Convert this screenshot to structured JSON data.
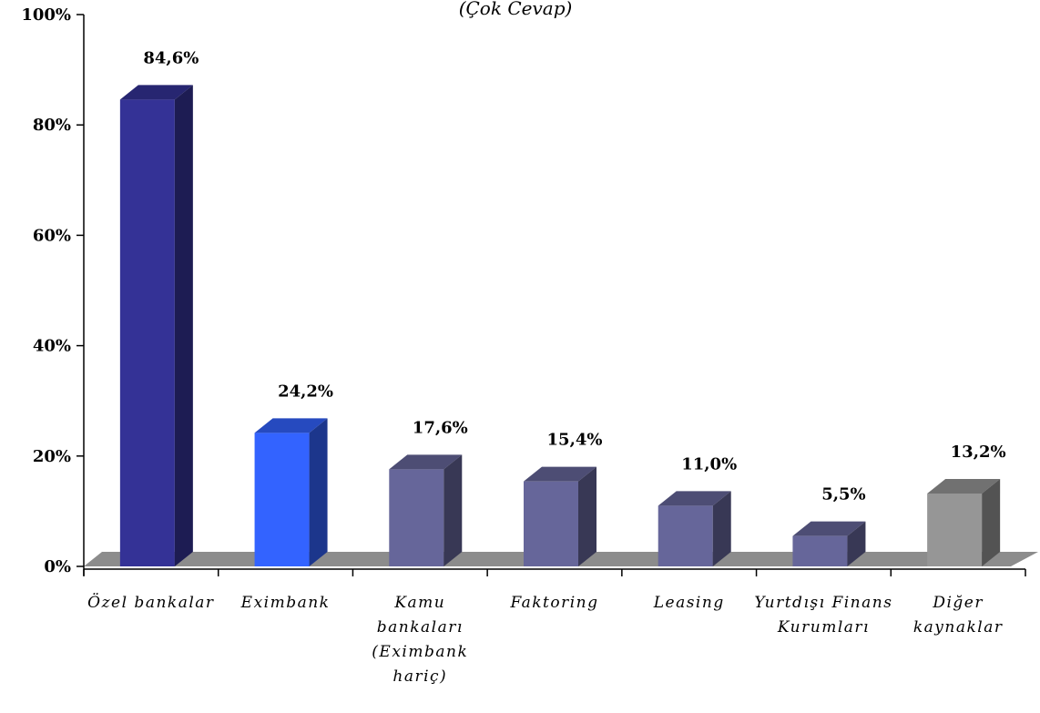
{
  "chart_data": {
    "type": "bar",
    "subtitle": "(Çok Cevap)",
    "categories": [
      [
        "Özel bankalar"
      ],
      [
        "Eximbank"
      ],
      [
        "Kamu",
        "bankaları",
        "(Eximbank",
        "hariç)"
      ],
      [
        "Faktoring"
      ],
      [
        "Leasing"
      ],
      [
        "Yurtdışı Finans",
        "Kurumları"
      ],
      [
        "Diğer",
        "kaynaklar"
      ]
    ],
    "values": [
      84.6,
      24.2,
      17.6,
      15.4,
      11.0,
      5.5,
      13.2
    ],
    "data_labels": [
      "84,6%",
      "24,2%",
      "17,6%",
      "15,4%",
      "11,0%",
      "5,5%",
      "13,2%"
    ],
    "ylim": [
      0,
      100
    ],
    "yticks": [
      0,
      20,
      40,
      60,
      80,
      100
    ],
    "ytick_labels": [
      "0%",
      "20%",
      "40%",
      "60%",
      "80%",
      "100%"
    ],
    "grid": false,
    "three_d": true,
    "colors": {
      "bar_fronts": [
        "#343296",
        "#3363FF",
        "#66669A",
        "#66669A",
        "#66669A",
        "#66669A",
        "#969696"
      ],
      "floor": "#8C8C8C",
      "axis": "#000000"
    }
  }
}
